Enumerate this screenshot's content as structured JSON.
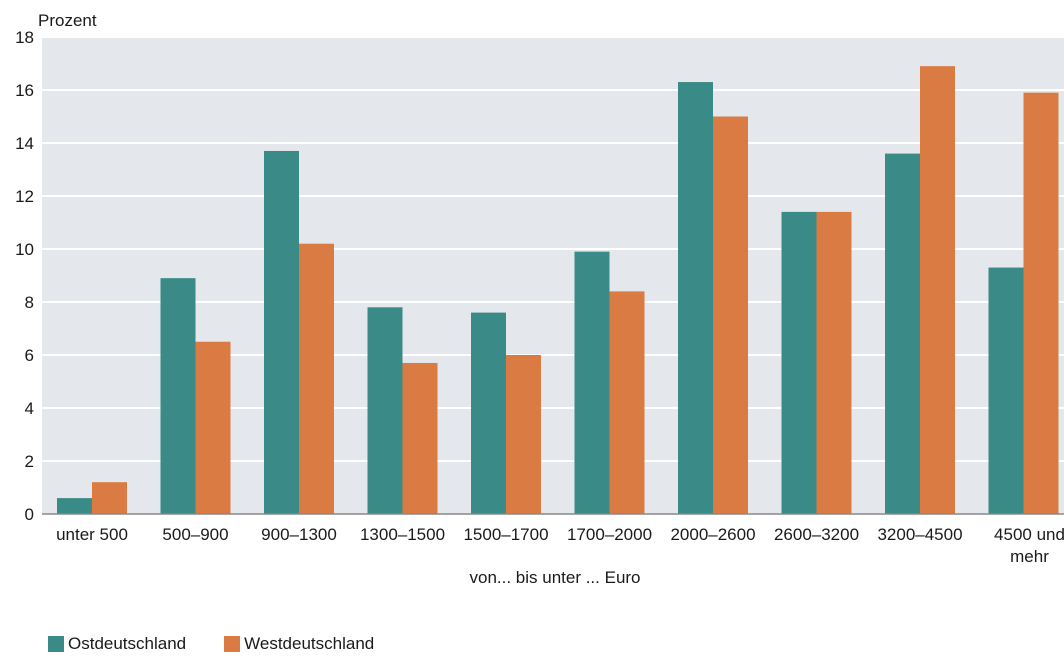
{
  "chart_data": {
    "type": "bar",
    "ylabel": "Prozent",
    "xlabel": "von... bis unter ... Euro",
    "ylim": [
      0,
      18
    ],
    "yticks": [
      0,
      2,
      4,
      6,
      8,
      10,
      12,
      14,
      16,
      18
    ],
    "grid": true,
    "legend_position": "bottom-left",
    "categories": [
      [
        "unter 500"
      ],
      [
        "500–900"
      ],
      [
        "900–1300"
      ],
      [
        "1300–1500"
      ],
      [
        "1500–1700"
      ],
      [
        "1700–2000"
      ],
      [
        "2000–2600"
      ],
      [
        "2600–3200"
      ],
      [
        "3200–4500"
      ],
      [
        "4500 und",
        "mehr"
      ]
    ],
    "series": [
      {
        "name": "Ostdeutschland",
        "color": "#3a8a87",
        "values": [
          0.6,
          8.9,
          13.7,
          7.8,
          7.6,
          9.9,
          16.3,
          11.4,
          13.6,
          9.3
        ]
      },
      {
        "name": "Westdeutschland",
        "color": "#d97b42",
        "values": [
          1.2,
          6.5,
          10.2,
          5.7,
          6.0,
          8.4,
          15.0,
          11.4,
          16.9,
          15.9
        ]
      }
    ],
    "plot_background": "#e4e8ed",
    "gridline_color": "#ffffff",
    "axis_color": "#888888"
  }
}
